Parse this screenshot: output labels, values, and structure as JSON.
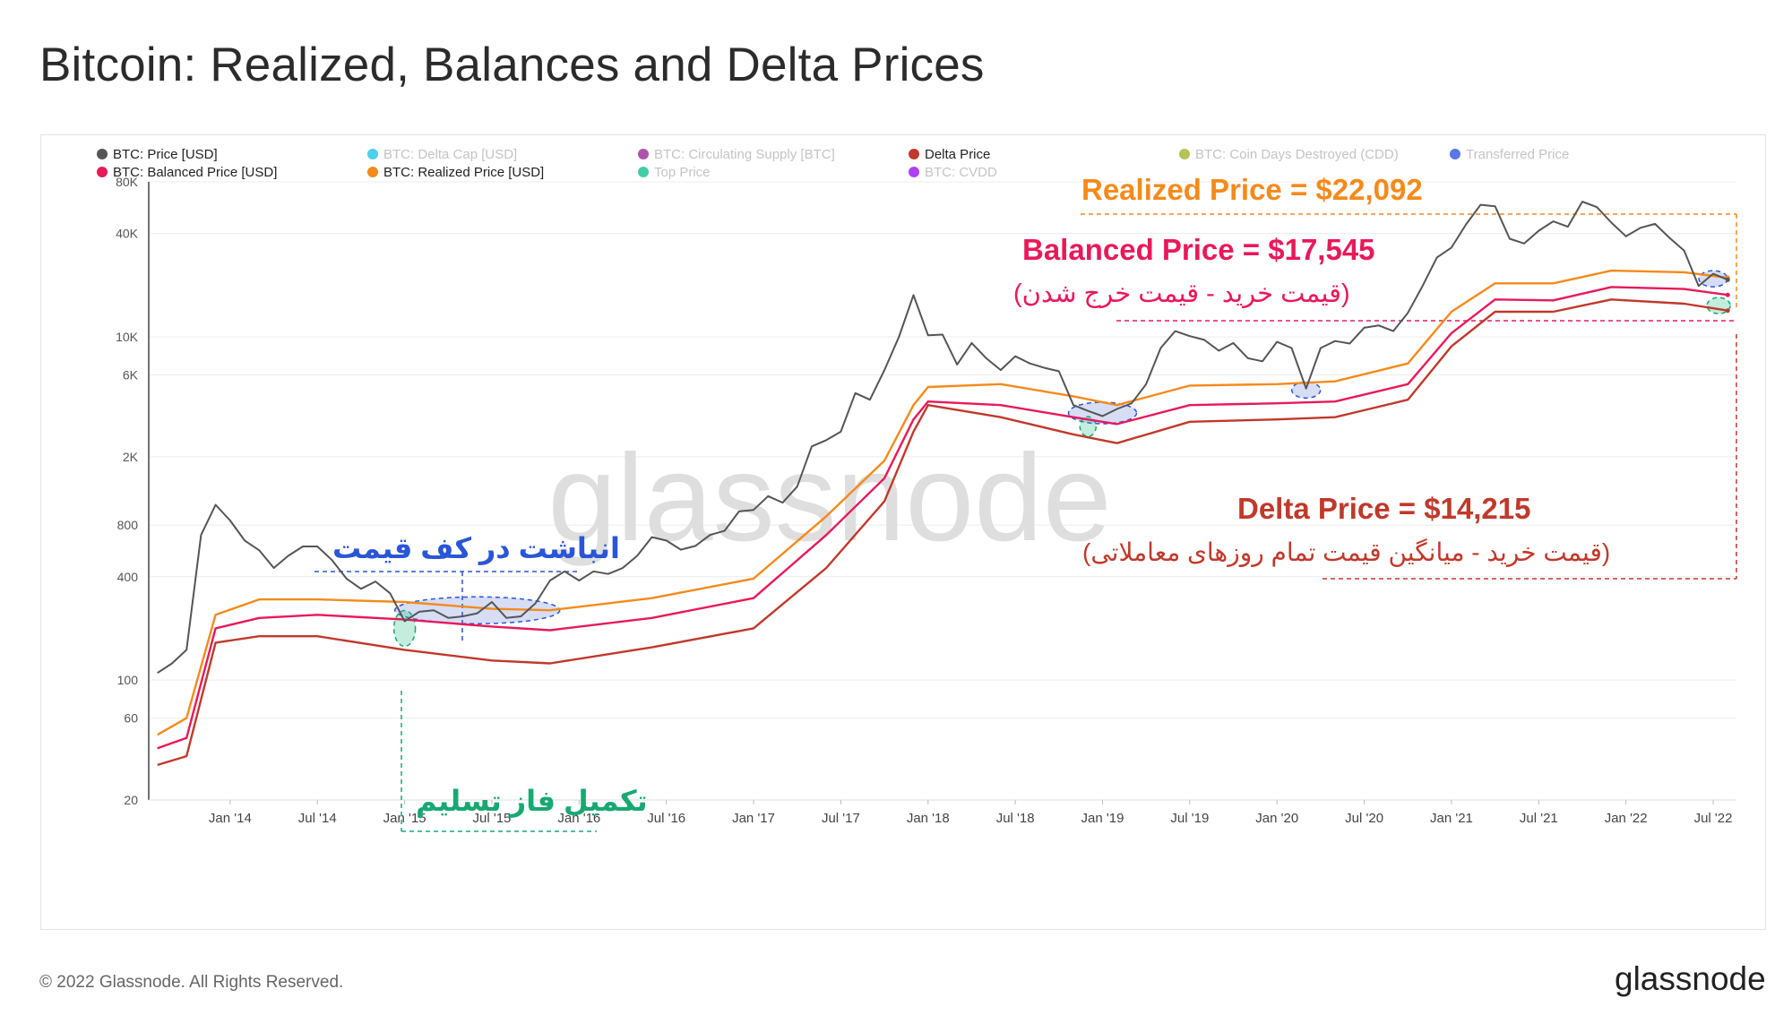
{
  "title": "Bitcoin: Realized, Balances and Delta Prices",
  "footer": {
    "copyright": "© 2022 Glassnode. All Rights Reserved.",
    "brand": "glassnode"
  },
  "watermark": "glassnode",
  "legend": [
    {
      "label": "BTC: Price [USD]",
      "color": "#555555",
      "active": true
    },
    {
      "label": "BTC: Delta Cap [USD]",
      "color": "#2ec5e8",
      "active": false
    },
    {
      "label": "BTC: Circulating Supply [BTC]",
      "color": "#a0359c",
      "active": false
    },
    {
      "label": "Delta Price",
      "color": "#c0392b",
      "active": true
    },
    {
      "label": "BTC: Coin Days Destroyed (CDD)",
      "color": "#a8b83a",
      "active": false
    },
    {
      "label": "Transferred Price",
      "color": "#3d5fe0",
      "active": false
    },
    {
      "label": "BTC: Balanced Price [USD]",
      "color": "#e8195a",
      "active": true
    },
    {
      "label": "BTC: Realized Price [USD]",
      "color": "#f48a1b",
      "active": true
    },
    {
      "label": "Top Price",
      "color": "#22c39a",
      "active": false
    },
    {
      "label": "BTC: CVDD",
      "color": "#a020f0",
      "active": false
    }
  ],
  "annotations": {
    "realized": "Realized Price = $22,092",
    "balanced": "Balanced Price = $17,545",
    "balanced_note": "(قیمت خرید - قیمت خرج شدن)",
    "delta": "Delta Price = $14,215",
    "delta_note": "(قیمت خرید - میانگین قیمت تمام روزهای معاملاتی)",
    "accumulation": "انباشت در کف قیمت",
    "capitulation": "تکمیل فاز تسلیم",
    "question": "?"
  },
  "colors": {
    "price": "#555555",
    "realized": "#f48a1b",
    "balanced": "#e8195a",
    "delta": "#c0392b",
    "accum": "#2a56d6",
    "capit": "#18a874"
  },
  "chart_data": {
    "type": "line",
    "y_scale": "log",
    "ylim": [
      20,
      80000
    ],
    "xlim": [
      "2013-08",
      "2022-08"
    ],
    "y_ticks": [
      "80K",
      "40K",
      "10K",
      "6K",
      "2K",
      "800",
      "400",
      "100",
      "60",
      "20"
    ],
    "x_ticks": [
      "Jan '14",
      "Jul '14",
      "Jan '15",
      "Jul '15",
      "Jan '16",
      "Jul '16",
      "Jan '17",
      "Jul '17",
      "Jan '18",
      "Jul '18",
      "Jan '19",
      "Jul '19",
      "Jan '20",
      "Jul '20",
      "Jan '21",
      "Jul '21",
      "Jan '22",
      "Jul '22"
    ],
    "series": [
      {
        "name": "BTC: Price [USD]",
        "color": "#555555",
        "points": [
          [
            "2013-08",
            110
          ],
          [
            "2013-09",
            125
          ],
          [
            "2013-10",
            150
          ],
          [
            "2013-11",
            700
          ],
          [
            "2013-12",
            1050
          ],
          [
            "2014-01",
            850
          ],
          [
            "2014-02",
            650
          ],
          [
            "2014-03",
            570
          ],
          [
            "2014-04",
            450
          ],
          [
            "2014-05",
            530
          ],
          [
            "2014-06",
            600
          ],
          [
            "2014-07",
            600
          ],
          [
            "2014-08",
            500
          ],
          [
            "2014-09",
            390
          ],
          [
            "2014-10",
            340
          ],
          [
            "2014-11",
            375
          ],
          [
            "2014-12",
            320
          ],
          [
            "2015-01",
            220
          ],
          [
            "2015-02",
            250
          ],
          [
            "2015-03",
            255
          ],
          [
            "2015-04",
            230
          ],
          [
            "2015-05",
            235
          ],
          [
            "2015-06",
            245
          ],
          [
            "2015-07",
            285
          ],
          [
            "2015-08",
            230
          ],
          [
            "2015-09",
            235
          ],
          [
            "2015-10",
            280
          ],
          [
            "2015-11",
            380
          ],
          [
            "2015-12",
            430
          ],
          [
            "2016-01",
            380
          ],
          [
            "2016-02",
            430
          ],
          [
            "2016-03",
            415
          ],
          [
            "2016-04",
            450
          ],
          [
            "2016-05",
            530
          ],
          [
            "2016-06",
            680
          ],
          [
            "2016-07",
            650
          ],
          [
            "2016-08",
            575
          ],
          [
            "2016-09",
            605
          ],
          [
            "2016-10",
            700
          ],
          [
            "2016-11",
            740
          ],
          [
            "2016-12",
            960
          ],
          [
            "2017-01",
            980
          ],
          [
            "2017-02",
            1180
          ],
          [
            "2017-03",
            1080
          ],
          [
            "2017-04",
            1340
          ],
          [
            "2017-05",
            2300
          ],
          [
            "2017-06",
            2500
          ],
          [
            "2017-07",
            2800
          ],
          [
            "2017-08",
            4700
          ],
          [
            "2017-09",
            4300
          ],
          [
            "2017-10",
            6400
          ],
          [
            "2017-11",
            10000
          ],
          [
            "2017-12",
            17500
          ],
          [
            "2018-01",
            10200
          ],
          [
            "2018-02",
            10300
          ],
          [
            "2018-03",
            6900
          ],
          [
            "2018-04",
            9200
          ],
          [
            "2018-05",
            7500
          ],
          [
            "2018-06",
            6400
          ],
          [
            "2018-07",
            7700
          ],
          [
            "2018-08",
            7000
          ],
          [
            "2018-09",
            6600
          ],
          [
            "2018-10",
            6300
          ],
          [
            "2018-11",
            4000
          ],
          [
            "2018-12",
            3700
          ],
          [
            "2019-01",
            3450
          ],
          [
            "2019-02",
            3800
          ],
          [
            "2019-03",
            4100
          ],
          [
            "2019-04",
            5300
          ],
          [
            "2019-05",
            8600
          ],
          [
            "2019-06",
            10800
          ],
          [
            "2019-07",
            10100
          ],
          [
            "2019-08",
            9600
          ],
          [
            "2019-09",
            8300
          ],
          [
            "2019-10",
            9200
          ],
          [
            "2019-11",
            7500
          ],
          [
            "2019-12",
            7200
          ],
          [
            "2020-01",
            9350
          ],
          [
            "2020-02",
            8600
          ],
          [
            "2020-03",
            5000
          ],
          [
            "2020-04",
            8600
          ],
          [
            "2020-05",
            9450
          ],
          [
            "2020-06",
            9140
          ],
          [
            "2020-07",
            11300
          ],
          [
            "2020-08",
            11650
          ],
          [
            "2020-09",
            10800
          ],
          [
            "2020-10",
            13800
          ],
          [
            "2020-11",
            19700
          ],
          [
            "2020-12",
            29000
          ],
          [
            "2021-01",
            33100
          ],
          [
            "2021-02",
            45200
          ],
          [
            "2021-03",
            58800
          ],
          [
            "2021-04",
            57700
          ],
          [
            "2021-05",
            37300
          ],
          [
            "2021-06",
            35000
          ],
          [
            "2021-07",
            41500
          ],
          [
            "2021-08",
            47100
          ],
          [
            "2021-09",
            43800
          ],
          [
            "2021-10",
            61300
          ],
          [
            "2021-11",
            57000
          ],
          [
            "2021-12",
            46300
          ],
          [
            "2022-01",
            38500
          ],
          [
            "2022-02",
            43200
          ],
          [
            "2022-03",
            45500
          ],
          [
            "2022-04",
            37700
          ],
          [
            "2022-05",
            31800
          ],
          [
            "2022-06",
            19800
          ],
          [
            "2022-07",
            23300
          ],
          [
            "2022-08",
            21500
          ]
        ]
      },
      {
        "name": "BTC: Realized Price [USD]",
        "color": "#f48a1b",
        "points": [
          [
            "2013-08",
            48
          ],
          [
            "2013-10",
            60
          ],
          [
            "2013-12",
            240
          ],
          [
            "2014-03",
            295
          ],
          [
            "2014-07",
            295
          ],
          [
            "2015-01",
            285
          ],
          [
            "2015-07",
            260
          ],
          [
            "2015-11",
            255
          ],
          [
            "2016-06",
            300
          ],
          [
            "2017-01",
            390
          ],
          [
            "2017-06",
            900
          ],
          [
            "2017-10",
            1900
          ],
          [
            "2017-12",
            4000
          ],
          [
            "2018-01",
            5100
          ],
          [
            "2018-06",
            5300
          ],
          [
            "2018-11",
            4500
          ],
          [
            "2019-02",
            4000
          ],
          [
            "2019-07",
            5200
          ],
          [
            "2020-01",
            5300
          ],
          [
            "2020-05",
            5500
          ],
          [
            "2020-10",
            7000
          ],
          [
            "2021-01",
            14000
          ],
          [
            "2021-04",
            20500
          ],
          [
            "2021-08",
            20500
          ],
          [
            "2021-12",
            24300
          ],
          [
            "2022-05",
            23800
          ],
          [
            "2022-08",
            22092
          ]
        ]
      },
      {
        "name": "BTC: Balanced Price [USD]",
        "color": "#e8195a",
        "points": [
          [
            "2013-08",
            40
          ],
          [
            "2013-10",
            46
          ],
          [
            "2013-12",
            200
          ],
          [
            "2014-03",
            230
          ],
          [
            "2014-07",
            240
          ],
          [
            "2015-01",
            225
          ],
          [
            "2015-07",
            205
          ],
          [
            "2015-11",
            195
          ],
          [
            "2016-06",
            230
          ],
          [
            "2017-01",
            300
          ],
          [
            "2017-06",
            700
          ],
          [
            "2017-10",
            1500
          ],
          [
            "2017-12",
            3300
          ],
          [
            "2018-01",
            4200
          ],
          [
            "2018-06",
            4000
          ],
          [
            "2018-11",
            3400
          ],
          [
            "2019-02",
            3100
          ],
          [
            "2019-07",
            4000
          ],
          [
            "2020-01",
            4100
          ],
          [
            "2020-05",
            4200
          ],
          [
            "2020-10",
            5300
          ],
          [
            "2021-01",
            10500
          ],
          [
            "2021-04",
            16500
          ],
          [
            "2021-08",
            16300
          ],
          [
            "2021-12",
            19500
          ],
          [
            "2022-05",
            19000
          ],
          [
            "2022-08",
            17545
          ]
        ]
      },
      {
        "name": "Delta Price",
        "color": "#c0392b",
        "points": [
          [
            "2013-08",
            32
          ],
          [
            "2013-10",
            36
          ],
          [
            "2013-12",
            165
          ],
          [
            "2014-03",
            180
          ],
          [
            "2014-07",
            180
          ],
          [
            "2015-01",
            150
          ],
          [
            "2015-07",
            130
          ],
          [
            "2015-11",
            125
          ],
          [
            "2016-06",
            155
          ],
          [
            "2017-01",
            200
          ],
          [
            "2017-06",
            450
          ],
          [
            "2017-10",
            1100
          ],
          [
            "2017-12",
            2800
          ],
          [
            "2018-01",
            4000
          ],
          [
            "2018-06",
            3400
          ],
          [
            "2018-11",
            2700
          ],
          [
            "2019-02",
            2400
          ],
          [
            "2019-07",
            3200
          ],
          [
            "2020-01",
            3300
          ],
          [
            "2020-05",
            3400
          ],
          [
            "2020-10",
            4300
          ],
          [
            "2021-01",
            8800
          ],
          [
            "2021-04",
            14000
          ],
          [
            "2021-08",
            14000
          ],
          [
            "2021-12",
            16500
          ],
          [
            "2022-05",
            15600
          ],
          [
            "2022-08",
            14215
          ]
        ]
      }
    ]
  }
}
